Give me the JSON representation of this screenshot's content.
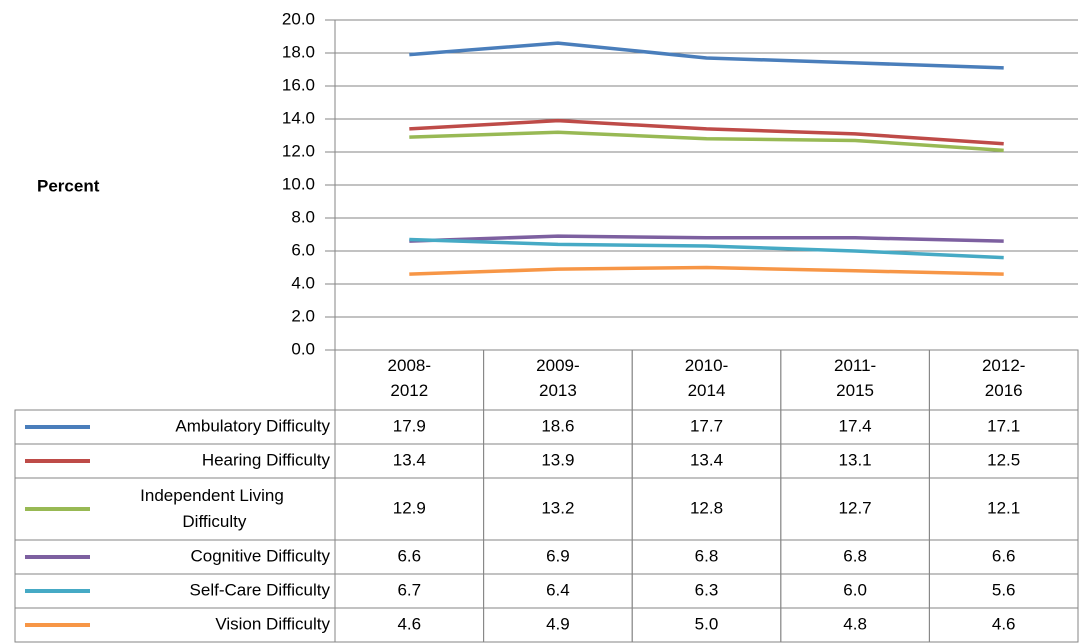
{
  "chart_data": {
    "type": "line",
    "y_label": "Percent",
    "categories": [
      "2008-2012",
      "2009-2013",
      "2010-2014",
      "2011-2015",
      "2012-2016"
    ],
    "ylim": [
      0,
      20
    ],
    "yticks": [
      {
        "value": 0,
        "label": "0.0"
      },
      {
        "value": 2,
        "label": "2.0"
      },
      {
        "value": 4,
        "label": "4.0"
      },
      {
        "value": 6,
        "label": "6.0"
      },
      {
        "value": 8,
        "label": "8.0"
      },
      {
        "value": 10,
        "label": "10.0"
      },
      {
        "value": 12,
        "label": "12.0"
      },
      {
        "value": 14,
        "label": "14.0"
      },
      {
        "value": 16,
        "label": "16.0"
      },
      {
        "value": 18,
        "label": "18.0"
      },
      {
        "value": 20,
        "label": "20.0"
      }
    ],
    "grid": true,
    "series": [
      {
        "name": "Ambulatory Difficulty",
        "color": "#4a7ebb",
        "values": [
          17.9,
          18.6,
          17.7,
          17.4,
          17.1
        ],
        "value_labels": [
          "17.9",
          "18.6",
          "17.7",
          "17.4",
          "17.1"
        ]
      },
      {
        "name": "Hearing Difficulty",
        "color": "#be4b48",
        "values": [
          13.4,
          13.9,
          13.4,
          13.1,
          12.5
        ],
        "value_labels": [
          "13.4",
          "13.9",
          "13.4",
          "13.1",
          "12.5"
        ]
      },
      {
        "name": "Independent Living Difficulty",
        "color": "#98b954",
        "values": [
          12.9,
          13.2,
          12.8,
          12.7,
          12.1
        ],
        "value_labels": [
          "12.9",
          "13.2",
          "12.8",
          "12.7",
          "12.1"
        ]
      },
      {
        "name": "Cognitive Difficulty",
        "color": "#7d60a0",
        "values": [
          6.6,
          6.9,
          6.8,
          6.8,
          6.6
        ],
        "value_labels": [
          "6.6",
          "6.9",
          "6.8",
          "6.8",
          "6.6"
        ]
      },
      {
        "name": "Self-Care Difficulty",
        "color": "#46aac5",
        "values": [
          6.7,
          6.4,
          6.3,
          6.0,
          5.6
        ],
        "value_labels": [
          "6.7",
          "6.4",
          "6.3",
          "6.0",
          "5.6"
        ]
      },
      {
        "name": "Vision Difficulty",
        "color": "#f79646",
        "values": [
          4.6,
          4.9,
          5.0,
          4.8,
          4.6
        ],
        "value_labels": [
          "4.6",
          "4.9",
          "5.0",
          "4.8",
          "4.6"
        ]
      }
    ]
  }
}
